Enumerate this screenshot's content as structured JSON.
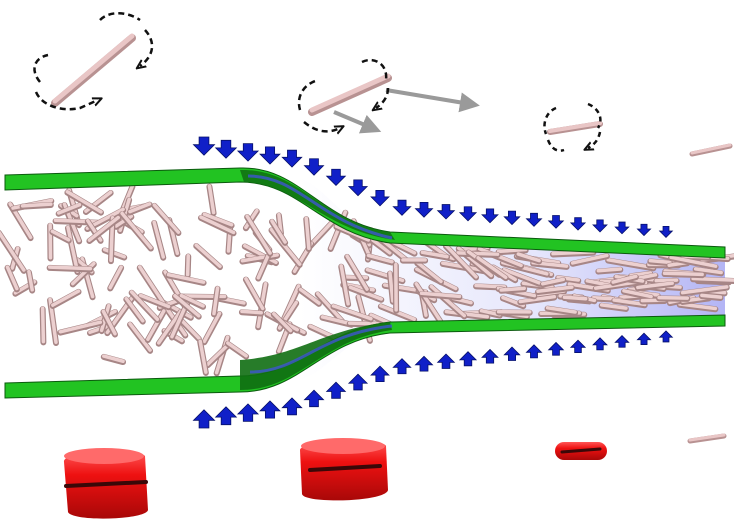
{
  "diagram": {
    "colors": {
      "background": "#ffffff",
      "wall": "#22c322",
      "wall_dark": "#0f6e12",
      "wall_edge": "#0b5a0e",
      "fluid": "#9a9cf2",
      "fluid_edge": "#3f55d0",
      "fiber": "#e9c6c6",
      "fiber_dark": "#b89292",
      "force_arrow": "#1020c8",
      "rotation_arrow": "#111111",
      "flow_arrow": "#9a9a9a",
      "cylinder": "#ee1111",
      "cylinder_dark": "#a80808"
    },
    "elements": {
      "upper_wall": "upper-channel-wall",
      "lower_wall": "lower-channel-wall",
      "fiber_suspension": "fiber-suspension",
      "pressure_arrows_top": "downward-force-arrows",
      "pressure_arrows_bottom": "upward-force-arrows",
      "rotating_fibers": "rotating-fiber-icons",
      "cross_sections": "fiber-cross-section-cylinders"
    }
  }
}
